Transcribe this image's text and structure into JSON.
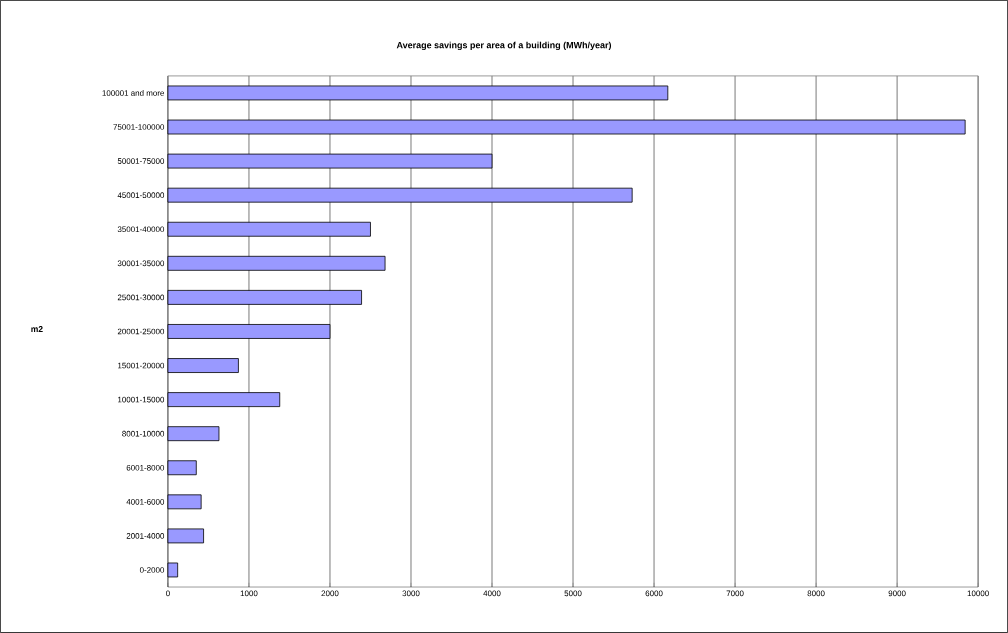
{
  "chart_data": {
    "type": "bar",
    "orientation": "horizontal",
    "title": "Average savings per area of a building (MWh/year)",
    "annotations": [
      "m2"
    ],
    "categories": [
      "100001 and more",
      "75001-100000",
      "50001-75000",
      "45001-50000",
      "35001-40000",
      "30001-35000",
      "25001-30000",
      "20001-25000",
      "15001-20000",
      "10001-15000",
      "8001-10000",
      "6001-8000",
      "4001-6000",
      "2001-4000",
      "0-2000"
    ],
    "values": [
      6170,
      9840,
      4000,
      5730,
      2500,
      2680,
      2390,
      2000,
      870,
      1380,
      630,
      350,
      410,
      440,
      120
    ],
    "color": "#9999ff",
    "xlim": [
      0,
      10000
    ],
    "xticks": [
      0,
      1000,
      2000,
      3000,
      4000,
      5000,
      6000,
      7000,
      8000,
      9000,
      10000
    ],
    "grid": "x"
  }
}
